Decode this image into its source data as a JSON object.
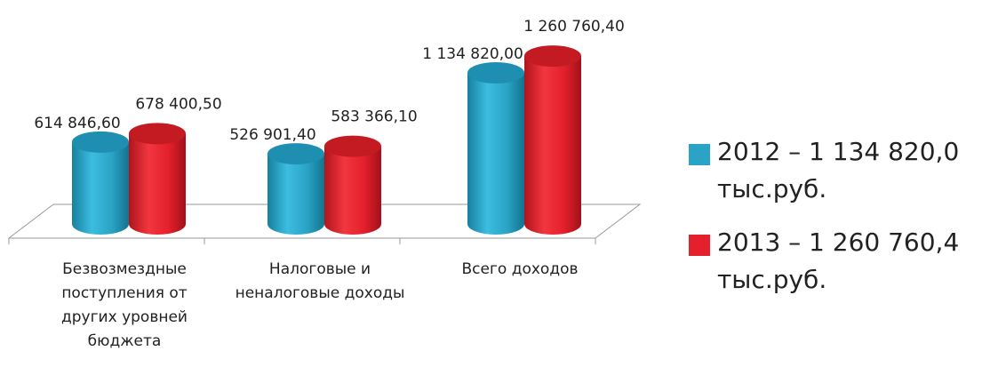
{
  "chart_data": {
    "type": "bar",
    "categories": [
      "Безвозмездные поступления от других уровней бюджета",
      "Налоговые и неналоговые доходы",
      "Всего доходов"
    ],
    "series": [
      {
        "name": "2012 – 1 134 820,0 тыс.руб.",
        "color": "#2aa3c5",
        "values": [
          614846.6,
          526901.4,
          1134820.0
        ],
        "labels": [
          "614 846,60",
          "526 901,40",
          "1 134 820,00"
        ]
      },
      {
        "name": "2013 – 1 260 760,4 тыс.руб.",
        "color": "#e3202b",
        "values": [
          678400.5,
          583366.1,
          1260760.4
        ],
        "labels": [
          "678 400,50",
          "583 366,10",
          "1 260 760,40"
        ]
      }
    ],
    "title": "",
    "xlabel": "",
    "ylabel": "",
    "ylim": [
      0,
      1400000
    ],
    "grid": false,
    "legend_position": "right"
  }
}
